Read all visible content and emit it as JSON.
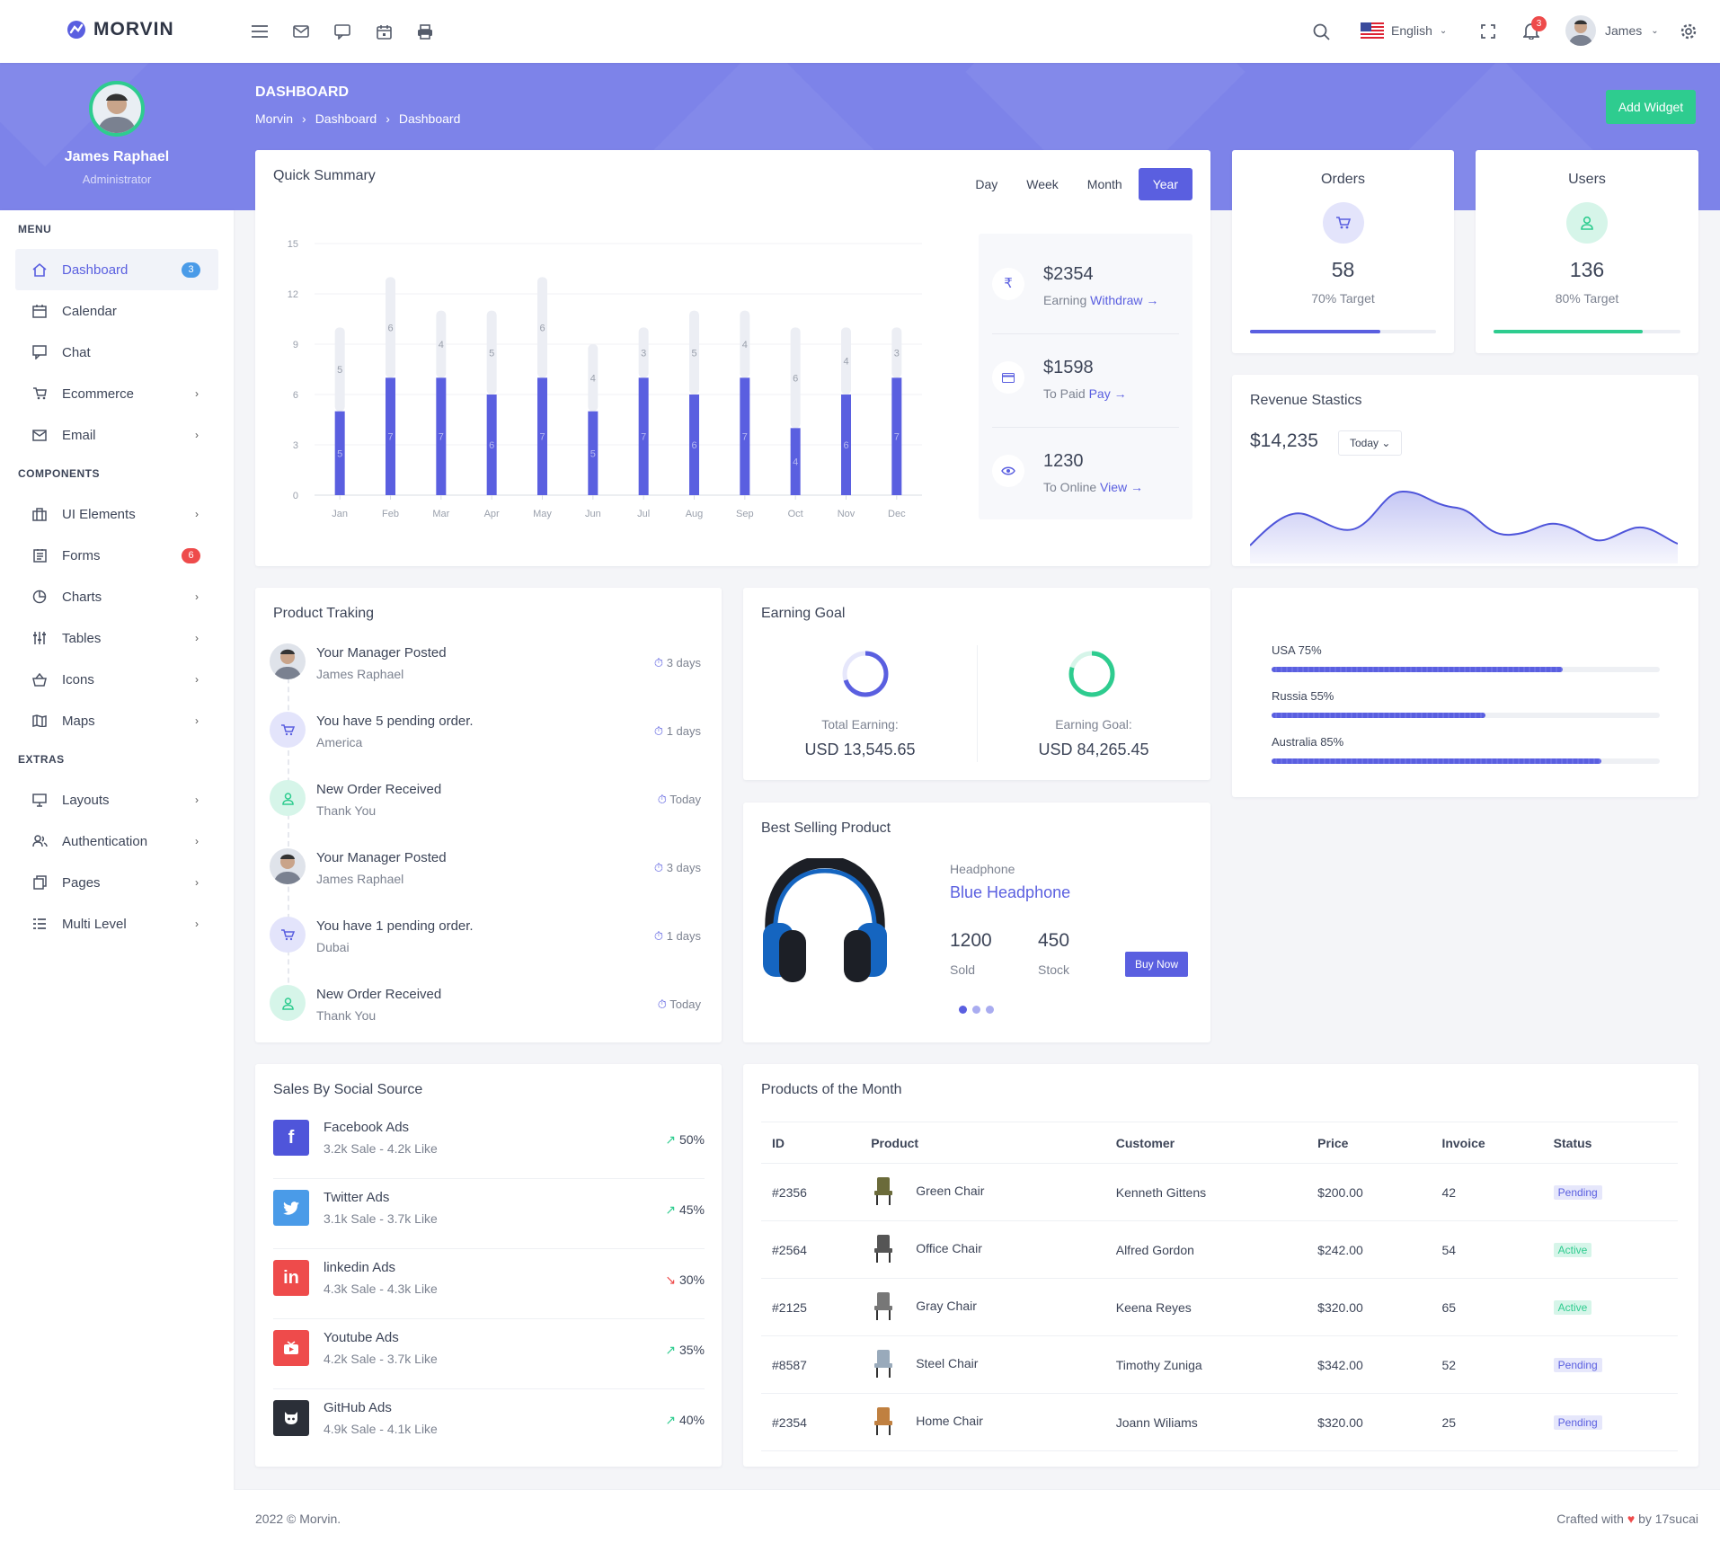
{
  "brand": {
    "name": "MORVIN"
  },
  "topbar": {
    "language": "English",
    "notifications": "3",
    "user": "James"
  },
  "profile": {
    "name": "James Raphael",
    "role": "Administrator"
  },
  "header": {
    "title": "DASHBOARD",
    "crumbs": [
      "Morvin",
      "Dashboard",
      "Dashboard"
    ],
    "add_widget": "Add Widget"
  },
  "sidebar": {
    "sections": [
      "MENU",
      "COMPONENTS",
      "EXTRAS"
    ],
    "items": [
      {
        "label": "Dashboard",
        "badge": "3",
        "icon": "home-icon"
      },
      {
        "label": "Calendar",
        "icon": "calendar-icon"
      },
      {
        "label": "Chat",
        "icon": "chat-icon"
      },
      {
        "label": "Ecommerce",
        "icon": "cart-icon"
      },
      {
        "label": "Email",
        "icon": "mail-icon"
      },
      {
        "label": "UI Elements",
        "icon": "briefcase-icon"
      },
      {
        "label": "Forms",
        "badge": "6",
        "icon": "form-icon"
      },
      {
        "label": "Charts",
        "icon": "pie-icon"
      },
      {
        "label": "Tables",
        "icon": "sliders-icon"
      },
      {
        "label": "Icons",
        "icon": "basket-icon"
      },
      {
        "label": "Maps",
        "icon": "map-icon"
      },
      {
        "label": "Layouts",
        "icon": "monitor-icon"
      },
      {
        "label": "Authentication",
        "icon": "users-icon"
      },
      {
        "label": "Pages",
        "icon": "pages-icon"
      },
      {
        "label": "Multi Level",
        "icon": "list-icon"
      }
    ]
  },
  "quick_summary": {
    "title": "Quick Summary",
    "periods": [
      "Day",
      "Week",
      "Month",
      "Year"
    ],
    "active_period": "Year",
    "stats": [
      {
        "value": "$2354",
        "label": "Earning",
        "link": "Withdraw",
        "icon": "rupee-icon"
      },
      {
        "value": "$1598",
        "label": "To Paid",
        "link": "Pay",
        "icon": "card-icon"
      },
      {
        "value": "1230",
        "label": "To Online",
        "link": "View",
        "icon": "eye-icon"
      }
    ]
  },
  "chart_data": {
    "type": "bar",
    "categories": [
      "Jan",
      "Feb",
      "Mar",
      "Apr",
      "May",
      "Jun",
      "Jul",
      "Aug",
      "Sep",
      "Oct",
      "Nov",
      "Dec"
    ],
    "series": [
      {
        "values": [
          5,
          7,
          7,
          6,
          7,
          5,
          7,
          6,
          7,
          4,
          6,
          7
        ]
      },
      {
        "values": [
          5,
          6,
          4,
          5,
          6,
          4,
          3,
          5,
          4,
          6,
          4,
          3
        ]
      }
    ],
    "stacked": true,
    "yticks": [
      0,
      3,
      6,
      9,
      12,
      15
    ],
    "ylim": [
      0,
      15
    ],
    "colors": [
      "#5a5fe0",
      "#eceef4"
    ],
    "grid": true
  },
  "orders": {
    "title": "Orders",
    "value": "58",
    "target": "70% Target",
    "progress": 0.7
  },
  "users": {
    "title": "Users",
    "value": "136",
    "target": "80% Target",
    "progress": 0.8
  },
  "revenue": {
    "title": "Revenue Stastics",
    "value": "$14,235",
    "filter": "Today"
  },
  "tracking": {
    "title": "Product Traking",
    "items": [
      {
        "title": "Your Manager Posted",
        "sub": "James Raphael",
        "time": "3 days",
        "type": "avatar"
      },
      {
        "title": "You have 5 pending order.",
        "sub": "America",
        "time": "1 days",
        "type": "cart"
      },
      {
        "title": "New Order Received",
        "sub": "Thank You",
        "time": "Today",
        "type": "user"
      },
      {
        "title": "Your Manager Posted",
        "sub": "James Raphael",
        "time": "3 days",
        "type": "avatar"
      },
      {
        "title": "You have 1 pending order.",
        "sub": "Dubai",
        "time": "1 days",
        "type": "cart"
      },
      {
        "title": "New Order Received",
        "sub": "Thank You",
        "time": "Today",
        "type": "user"
      }
    ]
  },
  "earning_goal": {
    "title": "Earning Goal",
    "total_label": "Total Earning:",
    "total_value": "USD 13,545.65",
    "total_progress": 0.7,
    "goal_label": "Earning Goal:",
    "goal_value": "USD 84,265.45",
    "goal_progress": 0.8
  },
  "best_selling": {
    "title": "Best Selling Product",
    "category": "Headphone",
    "name": "Blue Headphone",
    "sold": "1200",
    "sold_label": "Sold",
    "stock": "450",
    "stock_label": "Stock",
    "cta": "Buy Now"
  },
  "countries": [
    {
      "label": "USA 75%",
      "value": 0.75
    },
    {
      "label": "Russia 55%",
      "value": 0.55
    },
    {
      "label": "Australia 85%",
      "value": 0.85
    }
  ],
  "social": {
    "title": "Sales By Social Source",
    "items": [
      {
        "name": "Facebook Ads",
        "sub": "3.2k Sale - 4.2k Like",
        "pct": "50%",
        "dir": "up",
        "color": "#4f55da",
        "glyph": "f"
      },
      {
        "name": "Twitter Ads",
        "sub": "3.1k Sale - 3.7k Like",
        "pct": "45%",
        "dir": "up",
        "color": "#4a9be8",
        "glyph": "t"
      },
      {
        "name": "linkedin Ads",
        "sub": "4.3k Sale - 4.3k Like",
        "pct": "30%",
        "dir": "down",
        "color": "#ee4b4b",
        "glyph": "in"
      },
      {
        "name": "Youtube Ads",
        "sub": "4.2k Sale - 3.7k Like",
        "pct": "35%",
        "dir": "up",
        "color": "#ee4b4b",
        "glyph": "yt"
      },
      {
        "name": "GitHub Ads",
        "sub": "4.9k Sale - 4.1k Like",
        "pct": "40%",
        "dir": "up",
        "color": "#2b2f38",
        "glyph": "gh"
      }
    ]
  },
  "products": {
    "title": "Products of the Month",
    "headers": [
      "ID",
      "Product",
      "Customer",
      "Price",
      "Invoice",
      "Status"
    ],
    "rows": [
      {
        "id": "#2356",
        "product": "Green Chair",
        "customer": "Kenneth Gittens",
        "price": "$200.00",
        "invoice": "42",
        "status": "Pending"
      },
      {
        "id": "#2564",
        "product": "Office Chair",
        "customer": "Alfred Gordon",
        "price": "$242.00",
        "invoice": "54",
        "status": "Active"
      },
      {
        "id": "#2125",
        "product": "Gray Chair",
        "customer": "Keena Reyes",
        "price": "$320.00",
        "invoice": "65",
        "status": "Active"
      },
      {
        "id": "#8587",
        "product": "Steel Chair",
        "customer": "Timothy Zuniga",
        "price": "$342.00",
        "invoice": "52",
        "status": "Pending"
      },
      {
        "id": "#2354",
        "product": "Home Chair",
        "customer": "Joann Wiliams",
        "price": "$320.00",
        "invoice": "25",
        "status": "Pending"
      }
    ]
  },
  "footer": {
    "left": "2022 © Morvin.",
    "right_a": "Crafted with",
    "right_b": "by 17sucai"
  },
  "colors": {
    "accent": "#5a5fe0",
    "hero": "#7d83e9",
    "green": "#2ecc8f",
    "red": "#ee4b4b"
  }
}
